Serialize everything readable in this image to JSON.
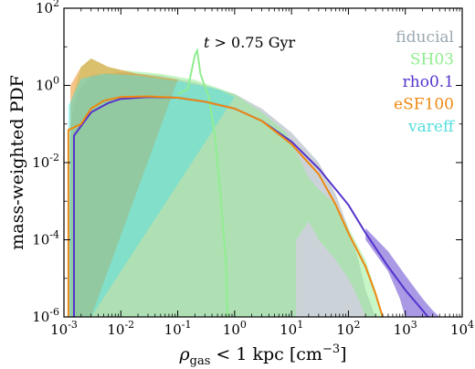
{
  "chart_data": {
    "type": "line",
    "ylabel": "mass-weighted PDF",
    "xlabel": {
      "rho": "ρ",
      "sub": "gas",
      "rest": " < 1 kpc [cm",
      "sup": "−3",
      "close": "]"
    },
    "annotation": {
      "pre": "t",
      "post": " > 0.75 Gyr"
    },
    "xscale": "log",
    "yscale": "log",
    "xlim": [
      0.001,
      10000
    ],
    "ylim": [
      1e-06,
      100
    ],
    "x_ticks": [
      {
        "v": 0.001,
        "base": "10",
        "exp": "-3"
      },
      {
        "v": 0.01,
        "base": "10",
        "exp": "-2"
      },
      {
        "v": 0.1,
        "base": "10",
        "exp": "-1"
      },
      {
        "v": 1,
        "base": "10",
        "exp": "0"
      },
      {
        "v": 10,
        "base": "10",
        "exp": "1"
      },
      {
        "v": 100,
        "base": "10",
        "exp": "2"
      },
      {
        "v": 1000,
        "base": "10",
        "exp": "3"
      },
      {
        "v": 10000,
        "base": "10",
        "exp": "4"
      }
    ],
    "y_ticks": [
      {
        "v": 1e-06,
        "base": "10",
        "exp": "-6"
      },
      {
        "v": 0.0001,
        "base": "10",
        "exp": "-4"
      },
      {
        "v": 0.01,
        "base": "10",
        "exp": "-2"
      },
      {
        "v": 1,
        "base": "10",
        "exp": "0"
      },
      {
        "v": 100,
        "base": "10",
        "exp": "2"
      }
    ],
    "legend": {
      "placement": "upper-right"
    },
    "series": [
      {
        "name": "fiducial",
        "color": "#9aa8b1",
        "style": "band",
        "upper": [
          [
            0.0012,
            1e-06
          ],
          [
            0.0013,
            0.1
          ],
          [
            0.0017,
            0.6
          ],
          [
            0.003,
            1.8
          ],
          [
            0.01,
            2.2
          ],
          [
            0.05,
            1.8
          ],
          [
            0.2,
            1.2
          ],
          [
            1,
            0.6
          ],
          [
            3,
            0.25
          ],
          [
            10,
            0.06
          ],
          [
            30,
            0.01
          ],
          [
            60,
            0.0015
          ],
          [
            100,
            0.0002
          ],
          [
            150,
            3e-05
          ],
          [
            200,
            5e-06
          ],
          [
            300,
            1e-06
          ]
        ],
        "lower": [
          [
            0.0012,
            1e-06
          ],
          [
            0.003,
            1e-06
          ],
          [
            300,
            1e-06
          ]
        ]
      },
      {
        "name": "SH03",
        "color": "#90ee90",
        "style": "band+line",
        "upper": [
          [
            0.0013,
            0.3
          ],
          [
            0.002,
            3
          ],
          [
            0.003,
            5
          ],
          [
            0.006,
            3
          ],
          [
            0.01,
            2.5
          ],
          [
            0.05,
            2
          ],
          [
            0.2,
            1.4
          ],
          [
            1,
            0.6
          ],
          [
            3,
            0.2
          ],
          [
            8,
            0.06
          ],
          [
            15,
            0.01
          ],
          [
            20,
            0.004
          ],
          [
            30,
            0.002
          ],
          [
            60,
            0.0008
          ],
          [
            100,
            0.0002
          ],
          [
            200,
            3e-05
          ],
          [
            300,
            5e-06
          ],
          [
            400,
            1e-06
          ]
        ],
        "lower": [
          [
            0.0013,
            1e-06
          ],
          [
            12,
            1e-06
          ],
          [
            12,
            0.0001
          ],
          [
            20,
            0.0003
          ],
          [
            30,
            0.0001
          ],
          [
            60,
            3e-05
          ],
          [
            100,
            1e-05
          ],
          [
            150,
            3e-06
          ],
          [
            200,
            1e-06
          ],
          [
            400,
            1e-06
          ]
        ],
        "line": [
          [
            0.1,
            0.6
          ],
          [
            0.15,
            0.8
          ],
          [
            0.2,
            6
          ],
          [
            0.22,
            8
          ],
          [
            0.25,
            2
          ],
          [
            0.35,
            0.5
          ],
          [
            0.45,
            0.05
          ],
          [
            0.55,
            0.002
          ],
          [
            0.7,
            3e-05
          ],
          [
            0.75,
            1e-06
          ]
        ]
      },
      {
        "name": "rho0.1",
        "color": "#5533cc",
        "style": "band+line",
        "upper": [
          [
            200,
            0.0002
          ],
          [
            500,
            5e-05
          ],
          [
            1000,
            1.2e-05
          ],
          [
            2000,
            3e-06
          ],
          [
            3000,
            1.5e-06
          ],
          [
            4000,
            1e-06
          ]
        ],
        "lower": [
          [
            200,
            0.0001
          ],
          [
            500,
            1.5e-05
          ],
          [
            800,
            3e-06
          ],
          [
            1000,
            1e-06
          ]
        ],
        "line": [
          [
            0.0015,
            1e-06
          ],
          [
            0.0015,
            0.05
          ],
          [
            0.003,
            0.2
          ],
          [
            0.006,
            0.35
          ],
          [
            0.01,
            0.45
          ],
          [
            0.03,
            0.5
          ],
          [
            0.1,
            0.48
          ],
          [
            0.3,
            0.38
          ],
          [
            1,
            0.25
          ],
          [
            3,
            0.12
          ],
          [
            10,
            0.035
          ],
          [
            30,
            0.007
          ],
          [
            100,
            0.0008
          ],
          [
            200,
            0.00015
          ],
          [
            500,
            2e-05
          ],
          [
            1000,
            5e-06
          ],
          [
            2000,
            1.5e-06
          ],
          [
            2500,
            1e-06
          ]
        ]
      },
      {
        "name": "eSF100",
        "color": "#ee8811",
        "style": "band+line",
        "upper": [
          [
            0.0013,
            1
          ],
          [
            0.002,
            3
          ],
          [
            0.003,
            5
          ],
          [
            0.006,
            3
          ],
          [
            0.02,
            2
          ],
          [
            0.1,
            1.4
          ]
        ],
        "lower": [
          [
            0.0013,
            1e-06
          ],
          [
            0.003,
            1e-06
          ]
        ],
        "line": [
          [
            0.0012,
            1e-06
          ],
          [
            0.0012,
            0.07
          ],
          [
            0.002,
            0.1
          ],
          [
            0.003,
            0.25
          ],
          [
            0.005,
            0.4
          ],
          [
            0.01,
            0.5
          ],
          [
            0.03,
            0.52
          ],
          [
            0.1,
            0.48
          ],
          [
            0.3,
            0.38
          ],
          [
            1,
            0.25
          ],
          [
            3,
            0.12
          ],
          [
            10,
            0.03
          ],
          [
            30,
            0.005
          ],
          [
            60,
            0.0008
          ],
          [
            100,
            0.00015
          ],
          [
            200,
            2e-05
          ],
          [
            300,
            4e-06
          ],
          [
            400,
            1e-06
          ]
        ]
      },
      {
        "name": "vareff",
        "color": "#55dddd",
        "style": "band",
        "upper": [
          [
            0.0012,
            0.3
          ],
          [
            0.002,
            1.5
          ],
          [
            0.005,
            2
          ],
          [
            0.02,
            1.8
          ],
          [
            0.1,
            1.3
          ],
          [
            0.5,
            0.8
          ],
          [
            1,
            0.5
          ]
        ],
        "lower": [
          [
            0.0012,
            1e-06
          ],
          [
            0.003,
            1e-06
          ]
        ]
      }
    ]
  }
}
